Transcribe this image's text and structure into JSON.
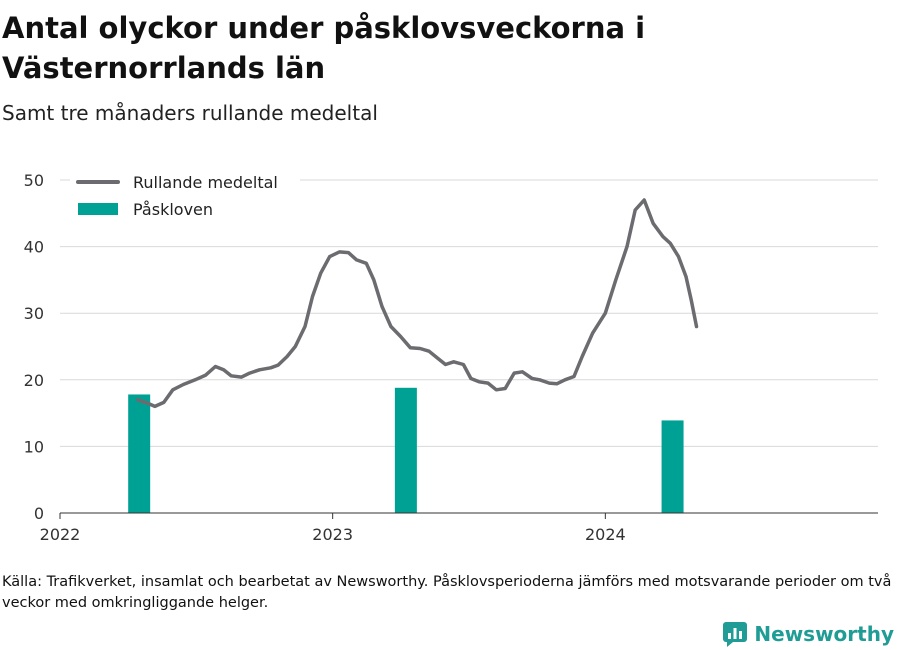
{
  "header": {
    "title": "Antal olyckor under påsklovsveckorna i Västernorrlands län",
    "subtitle": "Samt tre månaders rullande medeltal"
  },
  "footer": {
    "note": "Källa: Trafikverket, insamlat och bearbetat av Newsworthy. Påsklovsperioderna jämförs med motsvarande perioder om två veckor med omkringliggande helger.",
    "brand": "Newsworthy"
  },
  "colors": {
    "line": "#6b6b70",
    "bar": "#00a195",
    "grid": "#d9d9d9",
    "axis": "#333333",
    "brand": "#1f9c95"
  },
  "chart_data": {
    "type": "bar+line",
    "x_axis": {
      "type": "date",
      "range": [
        "2022-01-01",
        "2024-12-31"
      ],
      "tick_labels": [
        "2022",
        "2023",
        "2024"
      ]
    },
    "y_axis": {
      "range": [
        0,
        50
      ],
      "ticks": [
        0,
        10,
        20,
        30,
        40,
        50
      ]
    },
    "grid": true,
    "legend": {
      "placement": "top-left",
      "entries": [
        "Rullande medeltal",
        "Påskloven"
      ]
    },
    "series": [
      {
        "name": "Rullande medeltal",
        "kind": "line",
        "points": [
          [
            "2022-04-15",
            17.0
          ],
          [
            "2022-04-28",
            16.5
          ],
          [
            "2022-05-08",
            16.0
          ],
          [
            "2022-05-20",
            16.6
          ],
          [
            "2022-06-01",
            18.5
          ],
          [
            "2022-06-15",
            19.3
          ],
          [
            "2022-07-01",
            20.0
          ],
          [
            "2022-07-15",
            20.7
          ],
          [
            "2022-07-28",
            22.0
          ],
          [
            "2022-08-08",
            21.5
          ],
          [
            "2022-08-18",
            20.6
          ],
          [
            "2022-09-01",
            20.4
          ],
          [
            "2022-09-12",
            21.0
          ],
          [
            "2022-09-25",
            21.5
          ],
          [
            "2022-10-10",
            21.8
          ],
          [
            "2022-10-20",
            22.2
          ],
          [
            "2022-11-01",
            23.5
          ],
          [
            "2022-11-12",
            25.0
          ],
          [
            "2022-11-25",
            28.0
          ],
          [
            "2022-12-05",
            32.5
          ],
          [
            "2022-12-16",
            36.0
          ],
          [
            "2022-12-28",
            38.5
          ],
          [
            "2023-01-10",
            39.2
          ],
          [
            "2023-01-22",
            39.1
          ],
          [
            "2023-02-02",
            38.0
          ],
          [
            "2023-02-15",
            37.5
          ],
          [
            "2023-02-25",
            35.0
          ],
          [
            "2023-03-08",
            31.0
          ],
          [
            "2023-03-20",
            28.0
          ],
          [
            "2023-04-02",
            26.5
          ],
          [
            "2023-04-15",
            24.8
          ],
          [
            "2023-04-28",
            24.7
          ],
          [
            "2023-05-10",
            24.3
          ],
          [
            "2023-05-22",
            23.2
          ],
          [
            "2023-06-01",
            22.3
          ],
          [
            "2023-06-12",
            22.7
          ],
          [
            "2023-06-25",
            22.3
          ],
          [
            "2023-07-05",
            20.2
          ],
          [
            "2023-07-16",
            19.7
          ],
          [
            "2023-07-28",
            19.5
          ],
          [
            "2023-08-08",
            18.5
          ],
          [
            "2023-08-20",
            18.7
          ],
          [
            "2023-09-01",
            21.0
          ],
          [
            "2023-09-12",
            21.2
          ],
          [
            "2023-09-25",
            20.2
          ],
          [
            "2023-10-05",
            20.0
          ],
          [
            "2023-10-18",
            19.5
          ],
          [
            "2023-10-28",
            19.4
          ],
          [
            "2023-11-08",
            20.0
          ],
          [
            "2023-11-20",
            20.5
          ],
          [
            "2023-12-01",
            23.5
          ],
          [
            "2023-12-15",
            27.0
          ],
          [
            "2024-01-01",
            30.0
          ],
          [
            "2024-01-15",
            35.0
          ],
          [
            "2024-01-30",
            40.0
          ],
          [
            "2024-02-10",
            45.5
          ],
          [
            "2024-02-22",
            47.0
          ],
          [
            "2024-03-05",
            43.5
          ],
          [
            "2024-03-18",
            41.5
          ],
          [
            "2024-03-28",
            40.5
          ],
          [
            "2024-04-08",
            38.5
          ],
          [
            "2024-04-18",
            35.5
          ],
          [
            "2024-04-25",
            32.0
          ],
          [
            "2024-05-02",
            28.0
          ]
        ]
      },
      {
        "name": "Påskloven",
        "kind": "bar",
        "points": [
          [
            "2022-04-17",
            17.8
          ],
          [
            "2023-04-09",
            18.8
          ],
          [
            "2024-03-31",
            13.9
          ]
        ]
      }
    ]
  }
}
